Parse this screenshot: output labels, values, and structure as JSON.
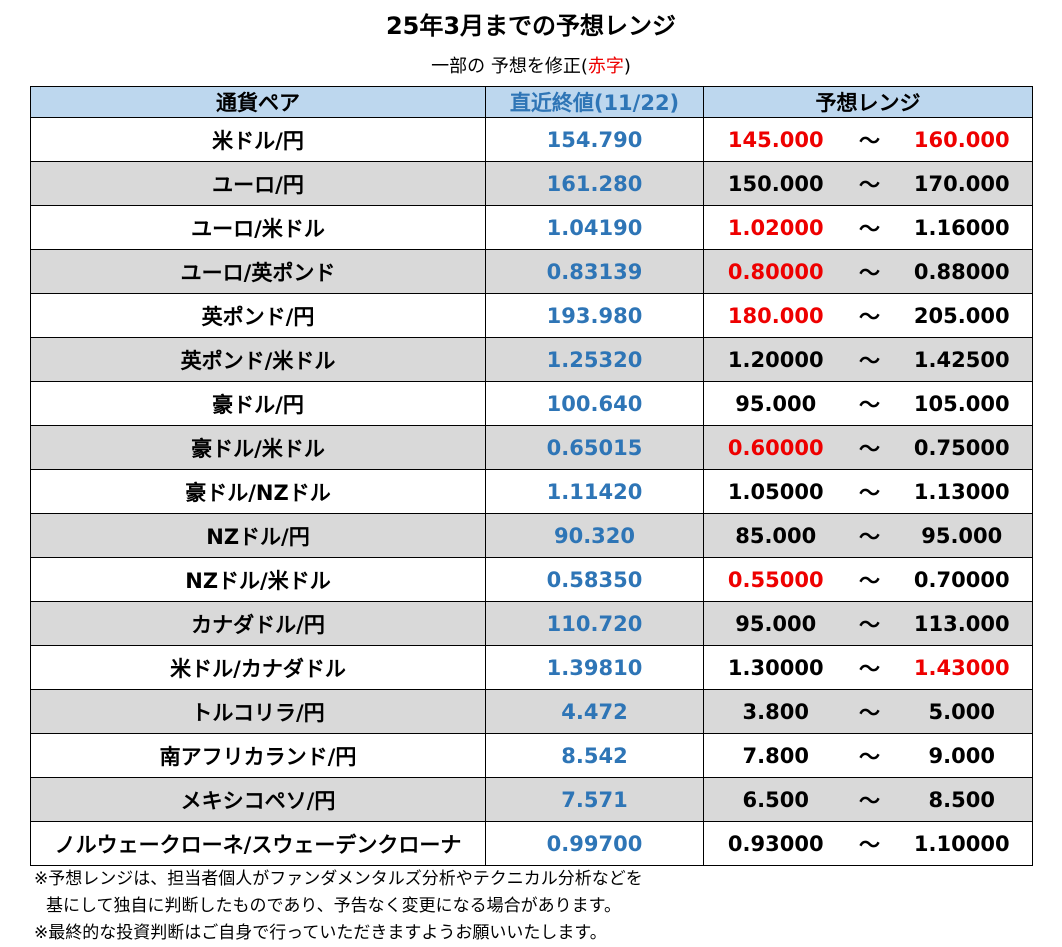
{
  "title": "25年3月までの予想レンジ",
  "subtitle": {
    "prefix": "一部の 予想を修正(",
    "highlight": "赤字",
    "suffix": ")"
  },
  "colors": {
    "revised": "#ee0000",
    "latest": "#2e75b6",
    "header_bg": "#bdd7ee",
    "stripe": "#d9d9d9"
  },
  "headers": {
    "pair": "通貨ペア",
    "latest": "直近終値(11/22)",
    "range": "予想レンジ"
  },
  "tilde": "～",
  "rows": [
    {
      "pair": "米ドル/円",
      "latest": "154.790",
      "low": "145.000",
      "high": "160.000",
      "low_revised": true,
      "high_revised": true
    },
    {
      "pair": "ユーロ/円",
      "latest": "161.280",
      "low": "150.000",
      "high": "170.000",
      "low_revised": false,
      "high_revised": false
    },
    {
      "pair": "ユーロ/米ドル",
      "latest": "1.04190",
      "low": "1.02000",
      "high": "1.16000",
      "low_revised": true,
      "high_revised": false
    },
    {
      "pair": "ユーロ/英ポンド",
      "latest": "0.83139",
      "low": "0.80000",
      "high": "0.88000",
      "low_revised": true,
      "high_revised": false
    },
    {
      "pair": "英ポンド/円",
      "latest": "193.980",
      "low": "180.000",
      "high": "205.000",
      "low_revised": true,
      "high_revised": false
    },
    {
      "pair": "英ポンド/米ドル",
      "latest": "1.25320",
      "low": "1.20000",
      "high": "1.42500",
      "low_revised": false,
      "high_revised": false
    },
    {
      "pair": "豪ドル/円",
      "latest": "100.640",
      "low": "95.000",
      "high": "105.000",
      "low_revised": false,
      "high_revised": false
    },
    {
      "pair": "豪ドル/米ドル",
      "latest": "0.65015",
      "low": "0.60000",
      "high": "0.75000",
      "low_revised": true,
      "high_revised": false
    },
    {
      "pair": "豪ドル/NZドル",
      "latest": "1.11420",
      "low": "1.05000",
      "high": "1.13000",
      "low_revised": false,
      "high_revised": false
    },
    {
      "pair": "NZドル/円",
      "latest": "90.320",
      "low": "85.000",
      "high": "95.000",
      "low_revised": false,
      "high_revised": false
    },
    {
      "pair": "NZドル/米ドル",
      "latest": "0.58350",
      "low": "0.55000",
      "high": "0.70000",
      "low_revised": true,
      "high_revised": false
    },
    {
      "pair": "カナダドル/円",
      "latest": "110.720",
      "low": "95.000",
      "high": "113.000",
      "low_revised": false,
      "high_revised": false
    },
    {
      "pair": "米ドル/カナダドル",
      "latest": "1.39810",
      "low": "1.30000",
      "high": "1.43000",
      "low_revised": false,
      "high_revised": true
    },
    {
      "pair": "トルコリラ/円",
      "latest": "4.472",
      "low": "3.800",
      "high": "5.000",
      "low_revised": false,
      "high_revised": false
    },
    {
      "pair": "南アフリカランド/円",
      "latest": "8.542",
      "low": "7.800",
      "high": "9.000",
      "low_revised": false,
      "high_revised": false
    },
    {
      "pair": "メキシコペソ/円",
      "latest": "7.571",
      "low": "6.500",
      "high": "8.500",
      "low_revised": false,
      "high_revised": false
    },
    {
      "pair": "ノルウェークローネ/スウェーデンクローナ",
      "latest": "0.99700",
      "low": "0.93000",
      "high": "1.10000",
      "low_revised": false,
      "high_revised": false
    }
  ],
  "notes": [
    "※予想レンジは、担当者個人がファンダメンタルズ分析やテクニカル分析などを",
    "基にして独自に判断したものであり、予告なく変更になる場合があります。",
    "※最終的な投資判断はご自身で行っていただきますようお願いいたします。"
  ]
}
